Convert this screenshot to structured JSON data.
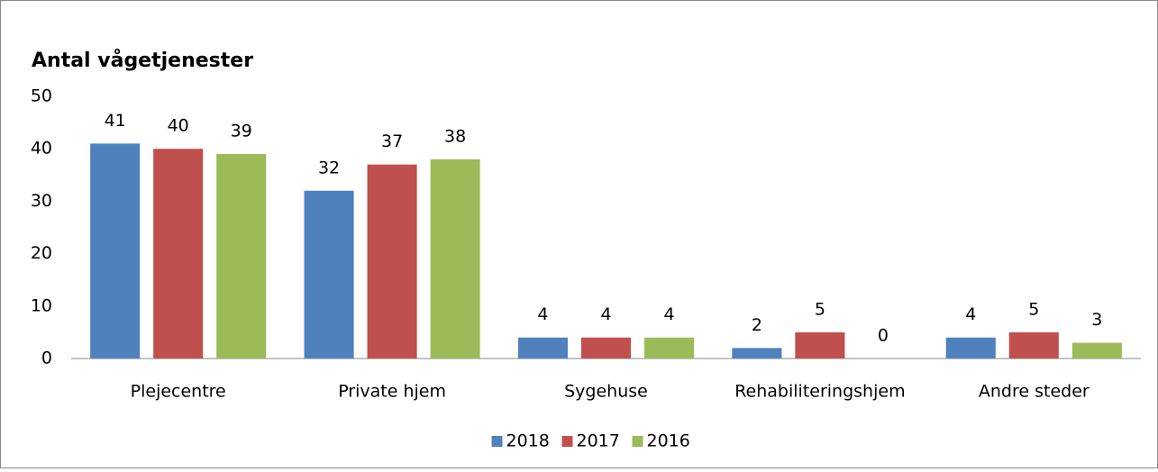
{
  "chart_data": {
    "type": "bar",
    "title": "Antal vågetjenester",
    "categories": [
      "Plejecentre",
      "Private hjem",
      "Sygehuse",
      "Rehabiliteringshjem",
      "Andre steder"
    ],
    "series": [
      {
        "name": "2018",
        "color": "#4f81bd",
        "values": [
          41,
          32,
          4,
          2,
          4
        ]
      },
      {
        "name": "2017",
        "color": "#c0504d",
        "values": [
          40,
          37,
          4,
          5,
          5
        ]
      },
      {
        "name": "2016",
        "color": "#9bbb59",
        "values": [
          39,
          38,
          4,
          0,
          3
        ]
      }
    ],
    "ylim": [
      0,
      50
    ],
    "yticks": [
      0,
      10,
      20,
      30,
      40,
      50
    ],
    "grid": false,
    "legend": "bottom"
  }
}
